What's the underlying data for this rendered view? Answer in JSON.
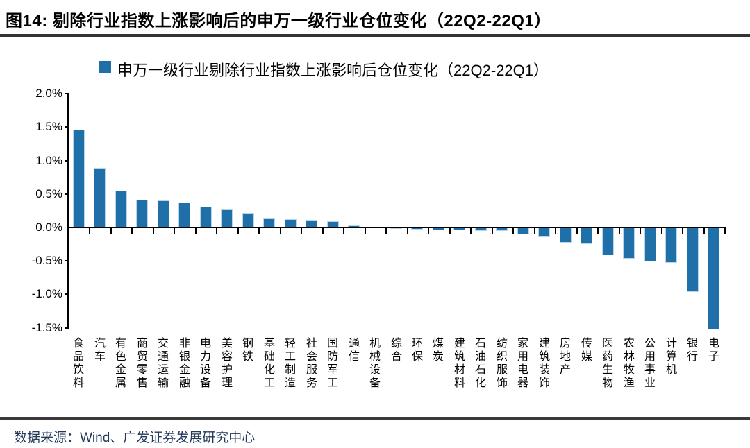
{
  "header": {
    "title": "图14:  剔除行业指数上涨影响后的申万一级行业仓位变化（22Q2-22Q1）"
  },
  "legend": {
    "label": "申万一级行业剔除行业指数上涨影响后仓位变化（22Q2-22Q1）",
    "swatch_color": "#1f6fa9",
    "swatch_icon": "legend-square-icon"
  },
  "chart_data": {
    "type": "bar",
    "title": "申万一级行业剔除行业指数上涨影响后仓位变化（22Q2-22Q1）",
    "categories": [
      "食品饮料",
      "汽车",
      "有色金属",
      "商贸零售",
      "交通运输",
      "非银金融",
      "电力设备",
      "美容护理",
      "钢铁",
      "基础化工",
      "轻工制造",
      "社会服务",
      "国防军工",
      "通信",
      "机械设备",
      "综合",
      "环保",
      "煤炭",
      "建筑材料",
      "石油石化",
      "纺织服饰",
      "家用电器",
      "建筑装饰",
      "房地产",
      "传媒",
      "医药生物",
      "农林牧渔",
      "公用事业",
      "计算机",
      "银行",
      "电子"
    ],
    "values": [
      1.46,
      0.89,
      0.55,
      0.41,
      0.4,
      0.37,
      0.31,
      0.27,
      0.22,
      0.13,
      0.12,
      0.11,
      0.09,
      0.03,
      0.01,
      -0.01,
      -0.03,
      -0.04,
      -0.04,
      -0.05,
      -0.05,
      -0.1,
      -0.15,
      -0.23,
      -0.25,
      -0.42,
      -0.47,
      -0.51,
      -0.53,
      -0.96,
      -1.52
    ],
    "unit": "%",
    "xlabel": "",
    "ylabel": "",
    "ylim": [
      -1.5,
      2.0
    ],
    "yticks": [
      2.0,
      1.5,
      1.0,
      0.5,
      0.0,
      -0.5,
      -1.0,
      -1.5
    ],
    "ytick_labels": [
      "2.0%",
      "1.5%",
      "1.0%",
      "0.5%",
      "0.0%",
      "-0.5%",
      "-1.0%",
      "-1.5%"
    ],
    "grid": false,
    "legend_position": "top",
    "bar_color": "#1f6fa9"
  },
  "footer": {
    "source": "数据来源：Wind、广发证券发展研究中心"
  },
  "colors": {
    "bar": "#1f6fa9",
    "axis": "#000000",
    "title_rule": "#333333",
    "footer_rule": "#3a3a3a",
    "source_text": "#22395a"
  }
}
